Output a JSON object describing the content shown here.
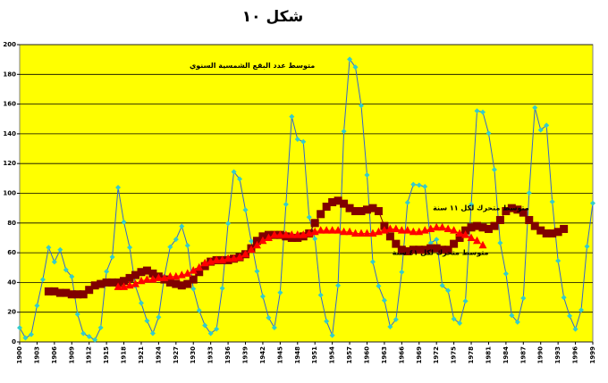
{
  "chart_data": {
    "type": "line",
    "title": "شكل ١٠",
    "annotations": [
      {
        "text": "متوسط عدد البقع الشمسية السنوي",
        "x": 1951,
        "y": 186
      },
      {
        "text": "متوسط متحرك لكل ١١ سنة",
        "x": 1988,
        "y": 90
      },
      {
        "text": "متوسط متحرك لكل ٤١ سنة",
        "x": 1981,
        "y": 60
      }
    ],
    "xlim": [
      1900,
      1999
    ],
    "xticks": [
      1900,
      1903,
      1906,
      1909,
      1912,
      1915,
      1918,
      1921,
      1924,
      1927,
      1930,
      1933,
      1936,
      1939,
      1942,
      1945,
      1948,
      1951,
      1954,
      1957,
      1960,
      1963,
      1966,
      1969,
      1972,
      1975,
      1978,
      1981,
      1984,
      1987,
      1990,
      1993,
      1996,
      1999
    ],
    "ylim": [
      0,
      200
    ],
    "yticks": [
      0,
      20,
      40,
      60,
      80,
      100,
      120,
      140,
      160,
      180,
      200
    ],
    "grid": true,
    "background": "#ffff00",
    "series": [
      {
        "marker": "diamond",
        "color": "#3366cc",
        "marker_color": "#33cccc",
        "x": [
          1900,
          1901,
          1902,
          1903,
          1904,
          1905,
          1906,
          1907,
          1908,
          1909,
          1910,
          1911,
          1912,
          1913,
          1914,
          1915,
          1916,
          1917,
          1918,
          1919,
          1920,
          1921,
          1922,
          1923,
          1924,
          1925,
          1926,
          1927,
          1928,
          1929,
          1930,
          1931,
          1932,
          1933,
          1934,
          1935,
          1936,
          1937,
          1938,
          1939,
          1940,
          1941,
          1942,
          1943,
          1944,
          1945,
          1946,
          1947,
          1948,
          1949,
          1950,
          1951,
          1952,
          1953,
          1954,
          1955,
          1956,
          1957,
          1958,
          1959,
          1960,
          1961,
          1962,
          1963,
          1964,
          1965,
          1966,
          1967,
          1968,
          1969,
          1970,
          1971,
          1972,
          1973,
          1974,
          1975,
          1976,
          1977,
          1978,
          1979,
          1980,
          1981,
          1982,
          1983,
          1984,
          1985,
          1986,
          1987,
          1988,
          1989,
          1990,
          1991,
          1992,
          1993,
          1994,
          1995,
          1996,
          1997,
          1998,
          1999
        ],
        "values": [
          9.5,
          2.7,
          5.0,
          24.4,
          42.0,
          63.5,
          53.8,
          62.0,
          48.5,
          43.9,
          18.6,
          5.7,
          3.6,
          1.4,
          9.6,
          47.4,
          57.1,
          103.9,
          80.6,
          63.6,
          37.6,
          26.1,
          14.2,
          5.8,
          16.7,
          44.3,
          63.9,
          69.0,
          77.8,
          64.9,
          35.7,
          21.2,
          11.1,
          5.7,
          8.7,
          36.1,
          79.7,
          114.4,
          109.6,
          88.8,
          67.8,
          47.5,
          30.6,
          16.3,
          9.6,
          33.2,
          92.6,
          151.6,
          136.3,
          134.7,
          83.9,
          69.4,
          31.5,
          13.9,
          4.4,
          38.0,
          141.7,
          190.2,
          184.8,
          159.0,
          112.3,
          53.9,
          37.6,
          27.9,
          10.2,
          15.1,
          47.0,
          93.8,
          105.9,
          105.5,
          104.5,
          66.6,
          68.9,
          38.0,
          34.5,
          15.5,
          12.6,
          27.5,
          92.5,
          155.4,
          154.6,
          140.4,
          115.9,
          66.6,
          45.9,
          17.9,
          13.4,
          29.4,
          100.2,
          157.6,
          142.6,
          145.7,
          94.3,
          54.6,
          29.9,
          17.5,
          8.6,
          21.5,
          64.3,
          93.3
        ]
      },
      {
        "marker": "square",
        "color": "#800000",
        "marker_color": "#800000",
        "x": [
          1905,
          1906,
          1907,
          1908,
          1909,
          1910,
          1911,
          1912,
          1913,
          1914,
          1915,
          1916,
          1917,
          1918,
          1919,
          1920,
          1921,
          1922,
          1923,
          1924,
          1925,
          1926,
          1927,
          1928,
          1929,
          1930,
          1931,
          1932,
          1933,
          1934,
          1935,
          1936,
          1937,
          1938,
          1939,
          1940,
          1941,
          1942,
          1943,
          1944,
          1945,
          1946,
          1947,
          1948,
          1949,
          1950,
          1951,
          1952,
          1953,
          1954,
          1955,
          1956,
          1957,
          1958,
          1959,
          1960,
          1961,
          1962,
          1963,
          1964,
          1965,
          1966,
          1967,
          1968,
          1969,
          1970,
          1971,
          1972,
          1973,
          1974,
          1975,
          1976,
          1977,
          1978,
          1979,
          1980,
          1981,
          1982,
          1983,
          1984,
          1985,
          1986,
          1987,
          1988,
          1989,
          1990,
          1991,
          1992,
          1993,
          1994
        ],
        "values": [
          34,
          34,
          33,
          33,
          32,
          32,
          32,
          35,
          38,
          39,
          40,
          40,
          40,
          41,
          43,
          45,
          47,
          48,
          46,
          44,
          42,
          40,
          39,
          38,
          39,
          42,
          47,
          51,
          54,
          55,
          55,
          55,
          56,
          57,
          59,
          63,
          68,
          71,
          72,
          72,
          72,
          71,
          70,
          70,
          71,
          73,
          80,
          86,
          91,
          94,
          95,
          93,
          90,
          88,
          88,
          89,
          90,
          88,
          78,
          71,
          66,
          62,
          61,
          62,
          62,
          62,
          63,
          63,
          62,
          62,
          66,
          70,
          75,
          77,
          78,
          77,
          76,
          78,
          82,
          88,
          90,
          89,
          87,
          82,
          78,
          75,
          73,
          73,
          74,
          76
        ]
      },
      {
        "marker": "triangle",
        "color": "#ff0000",
        "marker_color": "#ff0000",
        "x": [
          1917,
          1918,
          1919,
          1920,
          1921,
          1922,
          1923,
          1924,
          1925,
          1926,
          1927,
          1928,
          1929,
          1930,
          1931,
          1932,
          1933,
          1934,
          1935,
          1936,
          1937,
          1938,
          1939,
          1940,
          1941,
          1942,
          1943,
          1944,
          1945,
          1946,
          1947,
          1948,
          1949,
          1950,
          1951,
          1952,
          1953,
          1954,
          1955,
          1956,
          1957,
          1958,
          1959,
          1960,
          1961,
          1962,
          1963,
          1964,
          1965,
          1966,
          1967,
          1968,
          1969,
          1970,
          1971,
          1972,
          1973,
          1974,
          1975,
          1976,
          1977,
          1978,
          1979,
          1980
        ],
        "values": [
          37,
          37,
          38,
          39,
          41,
          42,
          42,
          43,
          43,
          44,
          44,
          45,
          46,
          48,
          50,
          53,
          54,
          55,
          55,
          56,
          56,
          57,
          59,
          62,
          65,
          68,
          70,
          72,
          72,
          72,
          72,
          72,
          72,
          73,
          74,
          75,
          75,
          75,
          75,
          74,
          74,
          73,
          73,
          73,
          73,
          74,
          75,
          76,
          76,
          75,
          75,
          74,
          74,
          75,
          76,
          77,
          77,
          76,
          75,
          73,
          72,
          70,
          68,
          65
        ]
      }
    ]
  }
}
